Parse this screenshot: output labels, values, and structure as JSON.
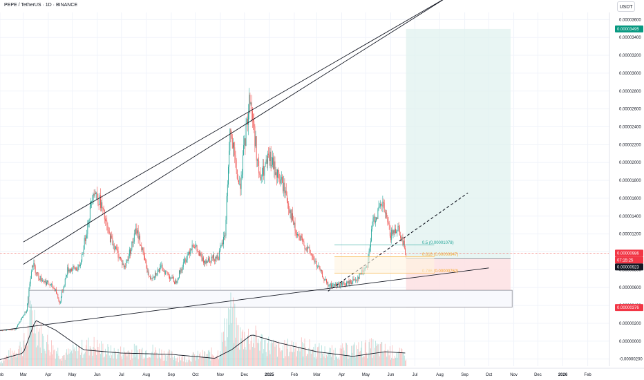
{
  "header": {
    "title": "PEPE / TetherUS · 1D · BINANCE"
  },
  "price_axis": {
    "unit_label": "USDT"
  },
  "badges": {
    "target": {
      "text": "0.00003495",
      "value": 3.495e-05,
      "color": "#089981"
    },
    "last": {
      "text": "0.00000986",
      "value": 9.86e-06,
      "color": "#f23645"
    },
    "countdown": {
      "text": "07:15:25",
      "color": "#f23645"
    },
    "entry": {
      "text": "0.00000923",
      "value": 9.23e-06,
      "color": "#131722"
    },
    "stop": {
      "text": "0.00000376",
      "value": 3.76e-06,
      "color": "#f23645"
    }
  },
  "fib_labels": [
    {
      "text": "0.5 (0.00001078)",
      "value": 1.078e-05,
      "color": "#26a69a"
    },
    {
      "text": "0.618 (0.00000947)",
      "value": 9.47e-06,
      "color": "#f5a623"
    },
    {
      "text": "0.786 (0.00000762)",
      "value": 7.62e-06,
      "color": "#f5a623"
    }
  ],
  "colors": {
    "up": "#26a69a",
    "down": "#ef5350",
    "target_zone": "#e0f2ef",
    "stop_zone": "#fde1e3",
    "trend": "#131722",
    "grid": "#f0f3fa"
  },
  "chart_data": {
    "type": "candlestick",
    "title": "PEPE / TetherUS · 1D · BINANCE",
    "x_axis": {
      "type": "date",
      "range": [
        "2024-02-01",
        "2026-02-28"
      ],
      "ticks": [
        {
          "label": "Feb",
          "date": "2024-02-01"
        },
        {
          "label": "Mar",
          "date": "2024-03-01"
        },
        {
          "label": "Apr",
          "date": "2024-04-01"
        },
        {
          "label": "May",
          "date": "2024-05-01"
        },
        {
          "label": "Jun",
          "date": "2024-06-01"
        },
        {
          "label": "Jul",
          "date": "2024-07-01"
        },
        {
          "label": "Aug",
          "date": "2024-08-01"
        },
        {
          "label": "Sep",
          "date": "2024-09-01"
        },
        {
          "label": "Oct",
          "date": "2024-10-01"
        },
        {
          "label": "Nov",
          "date": "2024-11-01"
        },
        {
          "label": "Dec",
          "date": "2024-12-01"
        },
        {
          "label": "2025",
          "date": "2025-01-01",
          "bold": true
        },
        {
          "label": "Feb",
          "date": "2025-02-01"
        },
        {
          "label": "Mar",
          "date": "2025-03-01"
        },
        {
          "label": "Apr",
          "date": "2025-04-01"
        },
        {
          "label": "May",
          "date": "2025-05-01"
        },
        {
          "label": "Jun",
          "date": "2025-06-01"
        },
        {
          "label": "Jul",
          "date": "2025-07-01"
        },
        {
          "label": "Aug",
          "date": "2025-08-01"
        },
        {
          "label": "Sep",
          "date": "2025-09-01"
        },
        {
          "label": "Oct",
          "date": "2025-10-01"
        },
        {
          "label": "Nov",
          "date": "2025-11-01"
        },
        {
          "label": "Dec",
          "date": "2025-12-01"
        },
        {
          "label": "2026",
          "date": "2026-01-01",
          "bold": true
        },
        {
          "label": "Feb",
          "date": "2026-02-01"
        }
      ]
    },
    "y_axis": {
      "unit": "USDT",
      "range": [
        -2.8e-06,
        3.68e-05
      ],
      "ticks": [
        {
          "label": "0.00003600",
          "value": 3.6e-05
        },
        {
          "label": "0.00003400",
          "value": 3.4e-05
        },
        {
          "label": "0.00003200",
          "value": 3.2e-05
        },
        {
          "label": "0.00003000",
          "value": 3e-05
        },
        {
          "label": "0.00002800",
          "value": 2.8e-05
        },
        {
          "label": "0.00002600",
          "value": 2.6e-05
        },
        {
          "label": "0.00002400",
          "value": 2.4e-05
        },
        {
          "label": "0.00002200",
          "value": 2.2e-05
        },
        {
          "label": "0.00002000",
          "value": 2e-05
        },
        {
          "label": "0.00001800",
          "value": 1.8e-05
        },
        {
          "label": "0.00001600",
          "value": 1.6e-05
        },
        {
          "label": "0.00001400",
          "value": 1.4e-05
        },
        {
          "label": "0.00001200",
          "value": 1.2e-05
        },
        {
          "label": "0.00001000",
          "value": 1e-05
        },
        {
          "label": "0.00000800",
          "value": 8e-06
        },
        {
          "label": "0.00000600",
          "value": 6e-06
        },
        {
          "label": "0.00000400",
          "value": 4e-06
        },
        {
          "label": "0.00000200",
          "value": 2e-06
        },
        {
          "label": "0.00000000",
          "value": 0.0
        },
        {
          "label": "-0.00000200",
          "value": -2e-06
        }
      ]
    },
    "price_anchors": [
      [
        "2024-02-01",
        1.2e-06
      ],
      [
        "2024-02-20",
        1.3e-06
      ],
      [
        "2024-03-05",
        3.5e-06
      ],
      [
        "2024-03-12",
        8.8e-06
      ],
      [
        "2024-03-20",
        7.2e-06
      ],
      [
        "2024-04-10",
        5.8e-06
      ],
      [
        "2024-04-15",
        4.2e-06
      ],
      [
        "2024-04-25",
        8e-06
      ],
      [
        "2024-05-10",
        8.2e-06
      ],
      [
        "2024-05-20",
        1.3e-05
      ],
      [
        "2024-05-27",
        1.7e-05
      ],
      [
        "2024-06-05",
        1.55e-05
      ],
      [
        "2024-06-15",
        1.2e-05
      ],
      [
        "2024-07-05",
        8.2e-06
      ],
      [
        "2024-07-20",
        1.25e-05
      ],
      [
        "2024-08-05",
        7e-06
      ],
      [
        "2024-08-20",
        8.2e-06
      ],
      [
        "2024-09-06",
        6.6e-06
      ],
      [
        "2024-09-28",
        1.1e-05
      ],
      [
        "2024-10-10",
        9e-06
      ],
      [
        "2024-10-30",
        9.5e-06
      ],
      [
        "2024-11-07",
        1.2e-05
      ],
      [
        "2024-11-13",
        2.35e-05
      ],
      [
        "2024-11-25",
        1.7e-05
      ],
      [
        "2024-12-08",
        2.75e-05
      ],
      [
        "2024-12-20",
        1.8e-05
      ],
      [
        "2025-01-01",
        2.05e-05
      ],
      [
        "2025-01-20",
        1.7e-05
      ],
      [
        "2025-02-03",
        1.2e-05
      ],
      [
        "2025-02-20",
        1e-05
      ],
      [
        "2025-03-10",
        7e-06
      ],
      [
        "2025-03-15",
        6.2e-06
      ],
      [
        "2025-04-07",
        6.4e-06
      ],
      [
        "2025-04-20",
        7e-06
      ],
      [
        "2025-05-03",
        8.6e-06
      ],
      [
        "2025-05-10",
        1.35e-05
      ],
      [
        "2025-05-22",
        1.53e-05
      ],
      [
        "2025-06-01",
        1.18e-05
      ],
      [
        "2025-06-10",
        1.29e-05
      ],
      [
        "2025-06-20",
        9.86e-06
      ]
    ],
    "volume_anchors": [
      [
        "2024-02-01",
        0.08
      ],
      [
        "2024-03-05",
        0.45
      ],
      [
        "2024-03-12",
        1.0
      ],
      [
        "2024-03-25",
        0.5
      ],
      [
        "2024-04-20",
        0.2
      ],
      [
        "2024-05-25",
        0.4
      ],
      [
        "2024-06-20",
        0.25
      ],
      [
        "2024-08-05",
        0.3
      ],
      [
        "2024-09-15",
        0.15
      ],
      [
        "2024-10-30",
        0.25
      ],
      [
        "2024-11-13",
        1.0
      ],
      [
        "2024-11-25",
        0.55
      ],
      [
        "2024-12-08",
        0.55
      ],
      [
        "2025-01-15",
        0.3
      ],
      [
        "2025-02-03",
        0.4
      ],
      [
        "2025-03-15",
        0.25
      ],
      [
        "2025-05-10",
        0.35
      ],
      [
        "2025-06-20",
        0.2
      ]
    ],
    "volume_ma_anchors": [
      [
        "2024-02-01",
        0.1
      ],
      [
        "2024-03-01",
        0.2
      ],
      [
        "2024-03-16",
        0.7
      ],
      [
        "2024-04-10",
        0.55
      ],
      [
        "2024-05-15",
        0.25
      ],
      [
        "2024-07-01",
        0.2
      ],
      [
        "2024-09-01",
        0.18
      ],
      [
        "2024-10-25",
        0.12
      ],
      [
        "2024-11-15",
        0.25
      ],
      [
        "2024-12-10",
        0.48
      ],
      [
        "2025-01-15",
        0.35
      ],
      [
        "2025-03-01",
        0.22
      ],
      [
        "2025-04-15",
        0.15
      ],
      [
        "2025-05-25",
        0.22
      ],
      [
        "2025-06-20",
        0.2
      ]
    ],
    "trendlines": [
      {
        "kind": "channel-upper",
        "from": [
          "2024-03-01",
          1.11e-05
        ],
        "to": [
          "2025-08-10",
          3.85e-05
        ]
      },
      {
        "kind": "channel-lower",
        "from": [
          "2024-03-01",
          8.6e-06
        ],
        "to": [
          "2025-08-10",
          3.85e-05
        ]
      },
      {
        "kind": "support",
        "from": [
          "2024-02-01",
          1.2e-06
        ],
        "to": [
          "2025-10-01",
          8.2e-06
        ]
      },
      {
        "kind": "projection-dashed",
        "from": [
          "2025-03-15",
          5.6e-06
        ],
        "to": [
          "2025-09-05",
          1.66e-05
        ]
      }
    ],
    "position": {
      "start": "2025-06-20",
      "end": "2025-10-28",
      "target": 3.495e-05,
      "entry": 9.23e-06,
      "stop": 3.76e-06
    },
    "support_box": {
      "start": "2024-03-08",
      "end": "2025-10-30",
      "top": 5.7e-06,
      "bottom": 3.8e-06
    },
    "fib": {
      "start": "2025-03-23",
      "end": "2025-07-25",
      "levels": [
        1.078e-05,
        9.47e-06,
        7.62e-06
      ]
    }
  }
}
